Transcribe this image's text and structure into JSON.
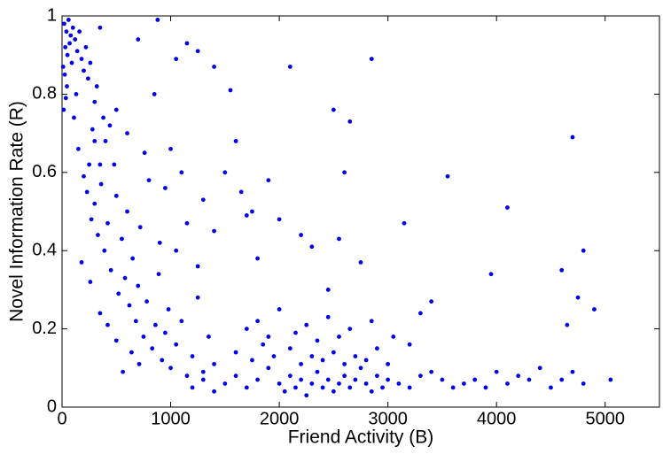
{
  "chart_data": {
    "type": "scatter",
    "x_label": "Friend Activity (B)",
    "y_label": "Novel Information Rate (R)",
    "color": "#0000ee",
    "xlim": [
      0,
      5500
    ],
    "xticks": [
      0,
      1000,
      2000,
      3000,
      4000,
      5000
    ],
    "ylim": [
      0,
      1
    ],
    "yticks": [
      0,
      0.2,
      0.4,
      0.6,
      0.8,
      1
    ],
    "x": [
      20,
      40,
      60,
      80,
      30,
      50,
      70,
      100,
      120,
      90,
      10,
      25,
      45,
      15,
      35,
      140,
      160,
      180,
      200,
      220,
      240,
      130,
      110,
      260,
      300,
      280,
      320,
      350,
      380,
      400,
      150,
      200,
      230,
      250,
      270,
      300,
      330,
      360,
      390,
      420,
      450,
      480,
      500,
      520,
      550,
      580,
      600,
      620,
      650,
      680,
      700,
      720,
      750,
      780,
      800,
      830,
      860,
      890,
      920,
      950,
      980,
      1000,
      1050,
      1100,
      1150,
      1200,
      1250,
      1300,
      1350,
      1400,
      180,
      260,
      350,
      420,
      500,
      560,
      640,
      710,
      300,
      440,
      600,
      760,
      350,
      500,
      900,
      950,
      1050,
      1150,
      1250,
      1300,
      1100,
      1000,
      850,
      700,
      880,
      1150,
      1250,
      1050,
      1400,
      1550,
      1600,
      1500,
      1650,
      1750,
      1400,
      1500,
      1600,
      1700,
      1800,
      1900,
      2000,
      2050,
      2100,
      2150,
      2200,
      2250,
      2300,
      2350,
      2400,
      2450,
      2500,
      2550,
      2600,
      2650,
      2700,
      2750,
      2800,
      2850,
      2900,
      2950,
      3000,
      3100,
      3200,
      3300,
      1600,
      1750,
      1850,
      1950,
      2100,
      2200,
      2300,
      2400,
      2500,
      2600,
      2700,
      2800,
      2900,
      3000,
      1700,
      1800,
      1900,
      2000,
      2150,
      2250,
      2350,
      2450,
      2550,
      2650,
      2850,
      3050,
      3200,
      3400,
      3500,
      3600,
      3700,
      3800,
      3900,
      4000,
      4100,
      4200,
      4300,
      4400,
      4500,
      4600,
      4700,
      4800,
      5050,
      1200,
      1300,
      1400,
      2100,
      2850,
      2500,
      2650,
      1900,
      2600,
      3550,
      3150,
      4100,
      4700,
      4800,
      4600,
      3950,
      2750,
      2200,
      2550,
      3400,
      4900,
      4650,
      4750,
      1700,
      2000,
      2300,
      3300,
      2450,
      1800
    ],
    "values": [
      0.98,
      0.96,
      0.99,
      0.95,
      0.92,
      0.9,
      0.93,
      0.97,
      0.94,
      0.88,
      0.87,
      0.85,
      0.82,
      0.76,
      0.79,
      0.91,
      0.96,
      0.89,
      0.86,
      0.92,
      0.84,
      0.8,
      0.74,
      0.88,
      0.78,
      0.71,
      0.82,
      0.97,
      0.74,
      0.68,
      0.66,
      0.59,
      0.55,
      0.62,
      0.48,
      0.52,
      0.44,
      0.57,
      0.4,
      0.47,
      0.35,
      0.62,
      0.54,
      0.29,
      0.43,
      0.33,
      0.5,
      0.26,
      0.38,
      0.22,
      0.31,
      0.46,
      0.18,
      0.27,
      0.58,
      0.15,
      0.21,
      0.34,
      0.12,
      0.19,
      0.25,
      0.1,
      0.16,
      0.22,
      0.08,
      0.13,
      0.28,
      0.09,
      0.18,
      0.11,
      0.37,
      0.32,
      0.24,
      0.21,
      0.17,
      0.09,
      0.14,
      0.11,
      0.68,
      0.72,
      0.7,
      0.65,
      0.62,
      0.76,
      0.42,
      0.56,
      0.4,
      0.47,
      0.36,
      0.53,
      0.6,
      0.66,
      0.8,
      0.94,
      0.99,
      0.93,
      0.91,
      0.89,
      0.87,
      0.81,
      0.68,
      0.6,
      0.55,
      0.5,
      0.45,
      0.06,
      0.08,
      0.05,
      0.07,
      0.1,
      0.06,
      0.04,
      0.08,
      0.05,
      0.07,
      0.03,
      0.06,
      0.09,
      0.05,
      0.07,
      0.04,
      0.06,
      0.08,
      0.05,
      0.07,
      0.1,
      0.06,
      0.04,
      0.08,
      0.05,
      0.07,
      0.06,
      0.05,
      0.08,
      0.14,
      0.12,
      0.16,
      0.13,
      0.15,
      0.11,
      0.13,
      0.12,
      0.14,
      0.11,
      0.13,
      0.12,
      0.15,
      0.11,
      0.2,
      0.22,
      0.18,
      0.25,
      0.19,
      0.21,
      0.17,
      0.23,
      0.18,
      0.2,
      0.22,
      0.18,
      0.16,
      0.09,
      0.07,
      0.05,
      0.06,
      0.07,
      0.05,
      0.09,
      0.06,
      0.08,
      0.07,
      0.1,
      0.05,
      0.07,
      0.09,
      0.06,
      0.07,
      0.05,
      0.07,
      0.04,
      0.87,
      0.89,
      0.76,
      0.73,
      0.58,
      0.6,
      0.59,
      0.47,
      0.51,
      0.69,
      0.4,
      0.35,
      0.34,
      0.37,
      0.44,
      0.43,
      0.27,
      0.25,
      0.21,
      0.28,
      0.49,
      0.48,
      0.41,
      0.24,
      0.3,
      0.38
    ]
  }
}
